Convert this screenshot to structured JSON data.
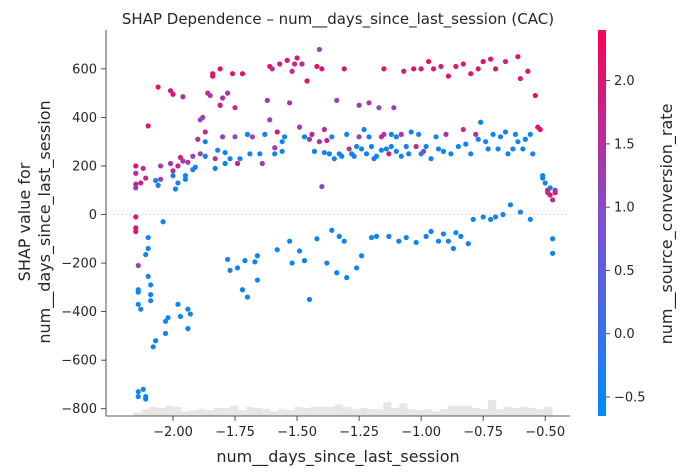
{
  "chart_data": {
    "type": "scatter",
    "title": "SHAP Dependence – num__days_since_last_session (CAC)",
    "xlabel": "num__days_since_last_session",
    "ylabel": [
      "SHAP value for",
      "num__days_since_last_session"
    ],
    "colorbar_label": "num__source_conversion_rate",
    "xlim": [
      -2.27,
      -0.4
    ],
    "ylim": [
      -830,
      760
    ],
    "xticks": [
      -2.0,
      -1.75,
      -1.5,
      -1.25,
      -1.0,
      -0.75,
      -0.5
    ],
    "xtick_labels": [
      "−2.00",
      "−1.75",
      "−1.50",
      "−1.25",
      "−1.00",
      "−0.75",
      "−0.50"
    ],
    "yticks": [
      600,
      400,
      200,
      0,
      -200,
      -400,
      -600,
      -800
    ],
    "ytick_labels": [
      "600",
      "400",
      "200",
      "0",
      "−200",
      "−400",
      "−600",
      "−800"
    ],
    "colorbar_range": [
      -0.65,
      2.4
    ],
    "colorbar_ticks": [
      2.0,
      1.5,
      1.0,
      0.5,
      0.0,
      -0.5
    ],
    "colorbar_tick_labels": [
      "2.0",
      "1.5",
      "1.0",
      "0.5",
      "0.0",
      "−0.5"
    ],
    "colors": {
      "low": "#008afb",
      "mid": "#7c52d2",
      "high": "#ff0052",
      "histogram": "#e6e6e6",
      "zero_line": "#aaaaaa"
    },
    "histogram": {
      "bins_x_start": -2.16,
      "bins_x_end": -0.47,
      "counts": [
        3,
        6,
        8,
        7,
        9,
        8,
        4,
        5,
        6,
        5,
        7,
        7,
        9,
        5,
        8,
        7,
        6,
        4,
        6,
        5,
        8,
        7,
        8,
        8,
        8,
        10,
        8,
        6,
        7,
        6,
        6,
        12,
        7,
        11,
        6,
        5,
        6,
        4,
        6,
        9,
        9,
        9,
        7,
        6,
        14,
        6,
        8,
        7,
        8,
        7,
        6,
        8
      ]
    },
    "points": [
      [
        -2.15,
        200,
        2.1
      ],
      [
        -2.15,
        170,
        1.5
      ],
      [
        -2.15,
        110,
        1.3
      ],
      [
        -2.15,
        125,
        1.6
      ],
      [
        -2.15,
        -10,
        2.2
      ],
      [
        -2.15,
        -55,
        2.1
      ],
      [
        -2.15,
        -70,
        1.9
      ],
      [
        -2.14,
        -210,
        1.2
      ],
      [
        -2.14,
        -310,
        -0.5
      ],
      [
        -2.14,
        -320,
        -0.5
      ],
      [
        -2.14,
        -370,
        -0.5
      ],
      [
        -2.13,
        -390,
        -0.4
      ],
      [
        -2.14,
        -730,
        -0.5
      ],
      [
        -2.14,
        -750,
        -0.4
      ],
      [
        -2.12,
        -720,
        -0.5
      ],
      [
        -2.11,
        -760,
        -0.4
      ],
      [
        -2.11,
        -750,
        -0.5
      ],
      [
        -2.13,
        130,
        1.8
      ],
      [
        -2.11,
        150,
        1.7
      ],
      [
        -2.12,
        190,
        1.5
      ],
      [
        -2.1,
        365,
        2.0
      ],
      [
        -2.1,
        -95,
        -0.5
      ],
      [
        -2.1,
        -140,
        -0.4
      ],
      [
        -2.11,
        -165,
        -0.5
      ],
      [
        -2.1,
        -255,
        -0.5
      ],
      [
        -2.09,
        -290,
        -0.5
      ],
      [
        -2.09,
        -330,
        -0.5
      ],
      [
        -2.09,
        -355,
        -0.4
      ],
      [
        -2.08,
        -545,
        -0.5
      ],
      [
        -2.07,
        -520,
        -0.4
      ],
      [
        -2.06,
        525,
        2.1
      ],
      [
        -2.07,
        140,
        -0.5
      ],
      [
        -2.06,
        120,
        -0.4
      ],
      [
        -2.05,
        200,
        1.3
      ],
      [
        -2.05,
        145,
        1.2
      ],
      [
        -2.04,
        -30,
        -0.5
      ],
      [
        -2.03,
        -440,
        -0.5
      ],
      [
        -2.03,
        -490,
        -0.4
      ],
      [
        -2.02,
        -425,
        -0.5
      ],
      [
        -2.01,
        510,
        2.0
      ],
      [
        -2.01,
        210,
        1.4
      ],
      [
        -2.0,
        180,
        1.6
      ],
      [
        -2.0,
        160,
        -0.4
      ],
      [
        -1.99,
        105,
        -0.5
      ],
      [
        -1.98,
        130,
        -0.5
      ],
      [
        -2.0,
        495,
        2.1
      ],
      [
        -1.98,
        200,
        1.8
      ],
      [
        -1.97,
        235,
        1.7
      ],
      [
        -1.98,
        -370,
        -0.5
      ],
      [
        -1.97,
        -420,
        -0.5
      ],
      [
        -1.96,
        485,
        1.5
      ],
      [
        -1.96,
        220,
        1.4
      ],
      [
        -1.95,
        145,
        -0.4
      ],
      [
        -1.95,
        160,
        -0.5
      ],
      [
        -1.94,
        215,
        1.3
      ],
      [
        -1.94,
        -390,
        -0.5
      ],
      [
        -1.94,
        -470,
        -0.5
      ],
      [
        -1.93,
        -410,
        -0.4
      ],
      [
        -1.92,
        185,
        -0.5
      ],
      [
        -1.92,
        240,
        1.2
      ],
      [
        -1.91,
        195,
        -0.5
      ],
      [
        -1.9,
        310,
        1.5
      ],
      [
        -1.89,
        390,
        1.1
      ],
      [
        -1.89,
        250,
        1.3
      ],
      [
        -1.88,
        400,
        1.2
      ],
      [
        -1.87,
        340,
        1.8
      ],
      [
        -1.87,
        300,
        -0.5
      ],
      [
        -1.87,
        240,
        -0.4
      ],
      [
        -1.86,
        500,
        1.5
      ],
      [
        -1.85,
        490,
        1.3
      ],
      [
        -1.84,
        570,
        2.1
      ],
      [
        -1.84,
        580,
        2.0
      ],
      [
        -1.83,
        230,
        1.4
      ],
      [
        -1.83,
        190,
        -0.5
      ],
      [
        -1.82,
        265,
        -0.4
      ],
      [
        -1.81,
        450,
        2.0
      ],
      [
        -1.81,
        600,
        2.2
      ],
      [
        -1.8,
        480,
        1.6
      ],
      [
        -1.8,
        320,
        1.2
      ],
      [
        -1.79,
        255,
        -0.5
      ],
      [
        -1.79,
        210,
        -0.5
      ],
      [
        -1.78,
        500,
        1.5
      ],
      [
        -1.77,
        230,
        -0.4
      ],
      [
        -1.78,
        -185,
        -0.5
      ],
      [
        -1.77,
        -230,
        -0.4
      ],
      [
        -1.76,
        580,
        2.0
      ],
      [
        -1.75,
        440,
        1.7
      ],
      [
        -1.75,
        320,
        1.0
      ],
      [
        -1.74,
        210,
        1.8
      ],
      [
        -1.73,
        230,
        -0.5
      ],
      [
        -1.72,
        580,
        2.1
      ],
      [
        -1.74,
        -220,
        -0.5
      ],
      [
        -1.72,
        -310,
        -0.5
      ],
      [
        -1.7,
        -340,
        -0.4
      ],
      [
        -1.71,
        -190,
        -0.5
      ],
      [
        -1.7,
        330,
        -0.5
      ],
      [
        -1.69,
        250,
        -0.4
      ],
      [
        -1.68,
        320,
        1.1
      ],
      [
        -1.67,
        -195,
        -0.5
      ],
      [
        -1.66,
        -270,
        -0.5
      ],
      [
        -1.66,
        -170,
        -0.5
      ],
      [
        -1.65,
        250,
        -0.5
      ],
      [
        -1.64,
        210,
        1.4
      ],
      [
        -1.63,
        330,
        -0.4
      ],
      [
        -1.62,
        470,
        1.4
      ],
      [
        -1.61,
        390,
        1.2
      ],
      [
        -1.61,
        610,
        2.2
      ],
      [
        -1.6,
        600,
        1.6
      ],
      [
        -1.59,
        275,
        1.3
      ],
      [
        -1.59,
        250,
        -0.5
      ],
      [
        -1.58,
        340,
        2.0
      ],
      [
        -1.58,
        -145,
        -0.5
      ],
      [
        -1.57,
        620,
        1.8
      ],
      [
        -1.56,
        260,
        -0.4
      ],
      [
        -1.56,
        300,
        -0.5
      ],
      [
        -1.55,
        320,
        -0.5
      ],
      [
        -1.54,
        635,
        2.1
      ],
      [
        -1.53,
        460,
        1.5
      ],
      [
        -1.53,
        -110,
        -0.5
      ],
      [
        -1.52,
        590,
        1.6
      ],
      [
        -1.52,
        -200,
        -0.5
      ],
      [
        -1.51,
        620,
        1.7
      ],
      [
        -1.5,
        645,
        2.0
      ],
      [
        -1.49,
        360,
        1.2
      ],
      [
        -1.49,
        -150,
        -0.4
      ],
      [
        -1.48,
        620,
        1.6
      ],
      [
        -1.47,
        320,
        -0.5
      ],
      [
        -1.47,
        -190,
        -0.5
      ],
      [
        -1.46,
        550,
        2.1
      ],
      [
        -1.45,
        310,
        1.4
      ],
      [
        -1.45,
        -350,
        -0.5
      ],
      [
        -1.44,
        330,
        1.7
      ],
      [
        -1.43,
        260,
        -0.4
      ],
      [
        -1.42,
        610,
        2.2
      ],
      [
        -1.42,
        -100,
        -0.5
      ],
      [
        -1.41,
        680,
        1.2
      ],
      [
        -1.41,
        300,
        1.5
      ],
      [
        -1.4,
        600,
        2.0
      ],
      [
        -1.4,
        115,
        1.0
      ],
      [
        -1.39,
        350,
        1.6
      ],
      [
        -1.39,
        255,
        -0.4
      ],
      [
        -1.38,
        305,
        1.9
      ],
      [
        -1.38,
        -200,
        -0.5
      ],
      [
        -1.37,
        250,
        -0.5
      ],
      [
        -1.36,
        320,
        -0.4
      ],
      [
        -1.36,
        -65,
        -0.5
      ],
      [
        -1.35,
        230,
        -0.5
      ],
      [
        -1.34,
        470,
        1.1
      ],
      [
        -1.34,
        -240,
        -0.5
      ],
      [
        -1.33,
        250,
        -0.5
      ],
      [
        -1.33,
        -90,
        -0.5
      ],
      [
        -1.32,
        240,
        -0.4
      ],
      [
        -1.31,
        600,
        1.9
      ],
      [
        -1.31,
        -110,
        -0.5
      ],
      [
        -1.3,
        330,
        -0.5
      ],
      [
        -1.3,
        -260,
        -0.5
      ],
      [
        -1.29,
        270,
        1.5
      ],
      [
        -1.28,
        250,
        -0.5
      ],
      [
        -1.27,
        240,
        -0.5
      ],
      [
        -1.26,
        280,
        -0.5
      ],
      [
        -1.26,
        -220,
        -0.4
      ],
      [
        -1.25,
        450,
        1.4
      ],
      [
        -1.25,
        320,
        1.2
      ],
      [
        -1.24,
        270,
        -0.5
      ],
      [
        -1.24,
        -170,
        -0.5
      ],
      [
        -1.23,
        350,
        -0.4
      ],
      [
        -1.22,
        250,
        -0.5
      ],
      [
        -1.21,
        460,
        1.3
      ],
      [
        -1.21,
        320,
        -0.5
      ],
      [
        -1.2,
        280,
        -0.5
      ],
      [
        -1.2,
        -95,
        -0.5
      ],
      [
        -1.19,
        230,
        -0.4
      ],
      [
        -1.18,
        240,
        -0.5
      ],
      [
        -1.18,
        -90,
        -0.5
      ],
      [
        -1.17,
        440,
        1.1
      ],
      [
        -1.16,
        320,
        1.6
      ],
      [
        -1.16,
        265,
        -0.5
      ],
      [
        -1.15,
        600,
        2.0
      ],
      [
        -1.15,
        330,
        1.4
      ],
      [
        -1.14,
        270,
        -0.5
      ],
      [
        -1.13,
        250,
        1.8
      ],
      [
        -1.13,
        -90,
        -0.5
      ],
      [
        -1.12,
        330,
        -0.4
      ],
      [
        -1.12,
        280,
        -0.5
      ],
      [
        -1.11,
        440,
        1.2
      ],
      [
        -1.1,
        320,
        -0.5
      ],
      [
        -1.1,
        260,
        -0.5
      ],
      [
        -1.09,
        -110,
        -0.5
      ],
      [
        -1.08,
        240,
        -0.4
      ],
      [
        -1.08,
        330,
        1.5
      ],
      [
        -1.07,
        590,
        1.9
      ],
      [
        -1.06,
        280,
        -0.5
      ],
      [
        -1.06,
        -95,
        -0.5
      ],
      [
        -1.05,
        250,
        -0.5
      ],
      [
        -1.04,
        340,
        -0.5
      ],
      [
        -1.03,
        600,
        2.1
      ],
      [
        -1.02,
        280,
        1.6
      ],
      [
        -1.02,
        -115,
        -0.5
      ],
      [
        -1.01,
        330,
        -0.4
      ],
      [
        -1.0,
        250,
        -0.5
      ],
      [
        -1.0,
        600,
        2.0
      ],
      [
        -0.99,
        260,
        1.1
      ],
      [
        -0.98,
        280,
        -0.5
      ],
      [
        -0.98,
        -90,
        -0.5
      ],
      [
        -0.97,
        630,
        2.2
      ],
      [
        -0.96,
        230,
        -0.5
      ],
      [
        -0.96,
        -70,
        -0.5
      ],
      [
        -0.95,
        600,
        2.0
      ],
      [
        -0.94,
        320,
        -0.4
      ],
      [
        -0.93,
        270,
        -0.5
      ],
      [
        -0.93,
        -110,
        -0.5
      ],
      [
        -0.92,
        610,
        1.9
      ],
      [
        -0.91,
        260,
        -0.5
      ],
      [
        -0.91,
        -80,
        -0.5
      ],
      [
        -0.9,
        330,
        1.4
      ],
      [
        -0.89,
        570,
        2.1
      ],
      [
        -0.89,
        -110,
        -0.4
      ],
      [
        -0.88,
        250,
        -0.5
      ],
      [
        -0.87,
        -140,
        -0.5
      ],
      [
        -0.86,
        610,
        2.0
      ],
      [
        -0.86,
        -75,
        -0.5
      ],
      [
        -0.85,
        280,
        -0.5
      ],
      [
        -0.84,
        -90,
        -0.5
      ],
      [
        -0.83,
        620,
        2.0
      ],
      [
        -0.83,
        350,
        1.6
      ],
      [
        -0.82,
        290,
        -0.5
      ],
      [
        -0.81,
        -120,
        -0.5
      ],
      [
        -0.8,
        580,
        2.1
      ],
      [
        -0.8,
        250,
        -0.5
      ],
      [
        -0.79,
        -20,
        -0.5
      ],
      [
        -0.78,
        330,
        1.5
      ],
      [
        -0.77,
        600,
        1.9
      ],
      [
        -0.77,
        310,
        -0.5
      ],
      [
        -0.76,
        380,
        -0.5
      ],
      [
        -0.75,
        630,
        2.2
      ],
      [
        -0.75,
        -10,
        -0.5
      ],
      [
        -0.74,
        300,
        -0.4
      ],
      [
        -0.73,
        270,
        -0.5
      ],
      [
        -0.72,
        640,
        2.0
      ],
      [
        -0.72,
        -20,
        -0.5
      ],
      [
        -0.71,
        330,
        -0.5
      ],
      [
        -0.7,
        600,
        2.1
      ],
      [
        -0.7,
        -10,
        -0.4
      ],
      [
        -0.69,
        270,
        -0.5
      ],
      [
        -0.68,
        320,
        -0.5
      ],
      [
        -0.67,
        0,
        -0.5
      ],
      [
        -0.66,
        630,
        1.9
      ],
      [
        -0.66,
        340,
        -0.5
      ],
      [
        -0.65,
        250,
        -0.5
      ],
      [
        -0.64,
        40,
        -0.5
      ],
      [
        -0.63,
        270,
        -0.4
      ],
      [
        -0.62,
        330,
        -0.5
      ],
      [
        -0.61,
        650,
        2.1
      ],
      [
        -0.61,
        300,
        -0.5
      ],
      [
        -0.6,
        560,
        2.0
      ],
      [
        -0.6,
        10,
        -0.5
      ],
      [
        -0.59,
        270,
        -0.5
      ],
      [
        -0.58,
        310,
        -0.5
      ],
      [
        -0.57,
        590,
        2.1
      ],
      [
        -0.56,
        330,
        -0.5
      ],
      [
        -0.56,
        -20,
        -0.5
      ],
      [
        -0.55,
        250,
        -0.4
      ],
      [
        -0.54,
        490,
        2.2
      ],
      [
        -0.53,
        360,
        2.0
      ],
      [
        -0.52,
        350,
        2.2
      ],
      [
        -0.51,
        150,
        -0.5
      ],
      [
        -0.51,
        160,
        -0.5
      ],
      [
        -0.5,
        130,
        -0.4
      ],
      [
        -0.49,
        100,
        2.2
      ],
      [
        -0.49,
        90,
        1.6
      ],
      [
        -0.48,
        80,
        2.0
      ],
      [
        -0.48,
        110,
        -0.5
      ],
      [
        -0.47,
        -100,
        -0.5
      ],
      [
        -0.47,
        -160,
        -0.5
      ],
      [
        -0.47,
        60,
        1.6
      ],
      [
        -0.46,
        90,
        2.1
      ],
      [
        -0.46,
        100,
        1.4
      ]
    ]
  }
}
